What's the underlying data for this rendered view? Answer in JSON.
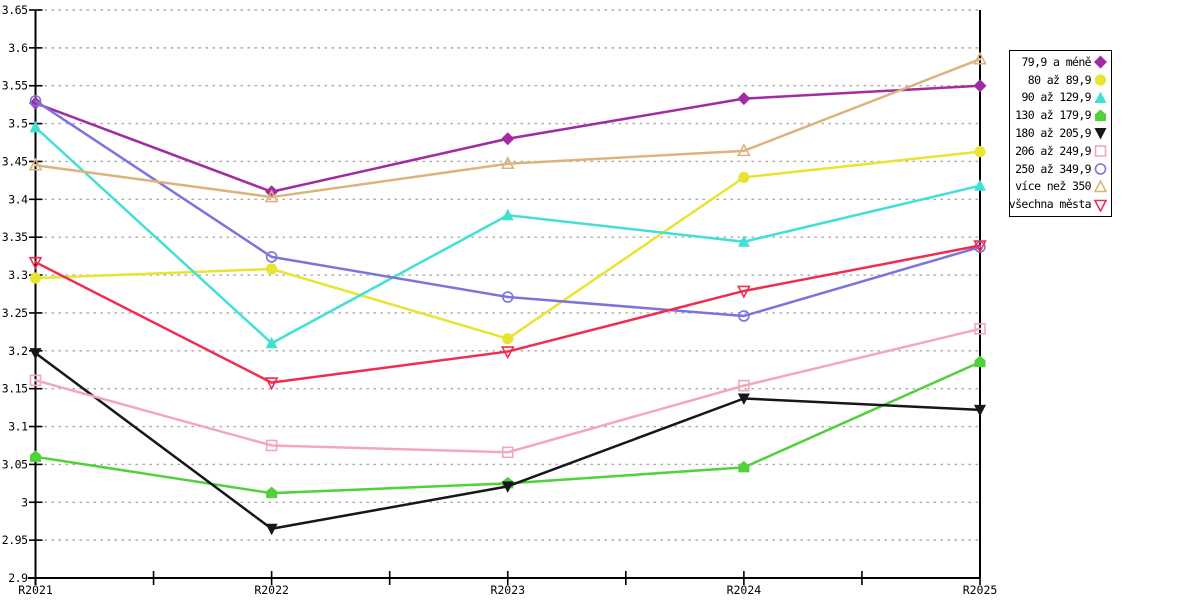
{
  "chart_data": {
    "type": "line",
    "title": "",
    "xlabel": "",
    "ylabel": "",
    "categories": [
      "R2021",
      "R2022",
      "R2023",
      "R2024",
      "R2025"
    ],
    "ylim": [
      2.9,
      3.65
    ],
    "ytick_step": 0.05,
    "ytick_labels": [
      "2.9",
      "2.95",
      "3",
      "3.05",
      "3.1",
      "3.15",
      "3.2",
      "3.25",
      "3.3",
      "3.35",
      "3.4",
      "3.45",
      "3.5",
      "3.55",
      "3.6",
      "3.65"
    ],
    "grid": "horizontal-dashed",
    "grid_color": "#aaaaaa",
    "axis_color": "#000000",
    "legend_position": "outside-right",
    "series": [
      {
        "name": "79,9 a méně",
        "color": "#a12ca1",
        "marker": "diamond-filled",
        "values": [
          3.527,
          3.41,
          3.48,
          3.533,
          3.55
        ]
      },
      {
        "name": "80 až 89,9",
        "color": "#e9e431",
        "marker": "circle-filled",
        "values": [
          3.296,
          3.308,
          3.216,
          3.429,
          3.463
        ]
      },
      {
        "name": "90 až 129,9",
        "color": "#40e1d4",
        "marker": "triangle-up-filled",
        "values": [
          3.495,
          3.21,
          3.379,
          3.344,
          3.418
        ]
      },
      {
        "name": "130 až 179,9",
        "color": "#50d03a",
        "marker": "pentagon-filled",
        "values": [
          3.06,
          3.012,
          3.025,
          3.046,
          3.185
        ]
      },
      {
        "name": "180 až 205,9",
        "color": "#16161f",
        "marker": "triangle-down-filled",
        "values": [
          3.197,
          2.965,
          3.021,
          3.137,
          3.122
        ]
      },
      {
        "name": "206 až 249,9",
        "color": "#f3a7bf",
        "marker": "square-open",
        "values": [
          3.161,
          3.075,
          3.066,
          3.154,
          3.229
        ]
      },
      {
        "name": "250 až 349,9",
        "color": "#7b74db",
        "marker": "circle-open",
        "values": [
          3.53,
          3.324,
          3.271,
          3.246,
          3.337
        ]
      },
      {
        "name": "více než 350",
        "color": "#dcb37d",
        "marker": "triangle-up-open",
        "values": [
          3.445,
          3.403,
          3.447,
          3.464,
          3.585
        ]
      },
      {
        "name": "všechna města",
        "color": "#f02d50",
        "marker": "triangle-down-open",
        "values": [
          3.317,
          3.158,
          3.199,
          3.279,
          3.339
        ]
      }
    ]
  }
}
